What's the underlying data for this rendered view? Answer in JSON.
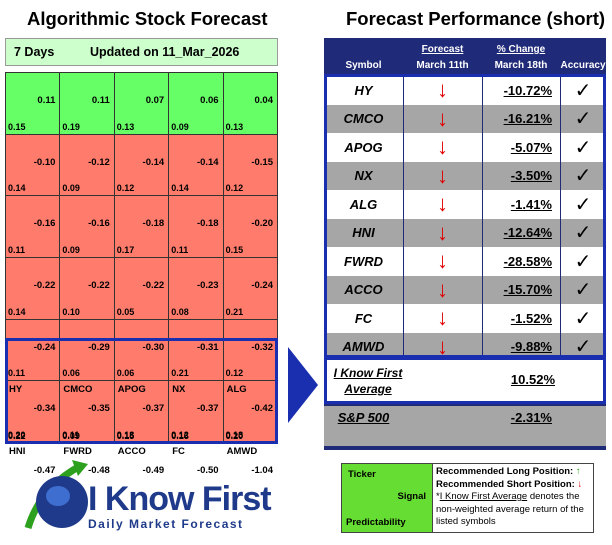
{
  "left_title": "Algorithmic Stock Forecast",
  "right_title": "Forecast Performance (short)",
  "grid_header": {
    "days": "7 Days",
    "updated": "Updated on 11_Mar_2026"
  },
  "grid": [
    {
      "symbol": "",
      "signal": "0.11",
      "pred": "0.15",
      "tone": "pos"
    },
    {
      "symbol": "",
      "signal": "0.11",
      "pred": "0.19",
      "tone": "pos"
    },
    {
      "symbol": "",
      "signal": "0.07",
      "pred": "0.13",
      "tone": "pos"
    },
    {
      "symbol": "",
      "signal": "0.06",
      "pred": "0.09",
      "tone": "pos"
    },
    {
      "symbol": "",
      "signal": "0.04",
      "pred": "0.13",
      "tone": "pos"
    },
    {
      "symbol": "",
      "signal": "-0.10",
      "pred": "0.14",
      "tone": "neg"
    },
    {
      "symbol": "",
      "signal": "-0.12",
      "pred": "0.09",
      "tone": "neg"
    },
    {
      "symbol": "",
      "signal": "-0.14",
      "pred": "0.12",
      "tone": "neg"
    },
    {
      "symbol": "",
      "signal": "-0.14",
      "pred": "0.14",
      "tone": "neg"
    },
    {
      "symbol": "",
      "signal": "-0.15",
      "pred": "0.12",
      "tone": "neg"
    },
    {
      "symbol": "",
      "signal": "-0.16",
      "pred": "0.11",
      "tone": "neg"
    },
    {
      "symbol": "",
      "signal": "-0.16",
      "pred": "0.09",
      "tone": "neg"
    },
    {
      "symbol": "",
      "signal": "-0.18",
      "pred": "0.17",
      "tone": "neg"
    },
    {
      "symbol": "",
      "signal": "-0.18",
      "pred": "0.11",
      "tone": "neg"
    },
    {
      "symbol": "",
      "signal": "-0.20",
      "pred": "0.15",
      "tone": "neg"
    },
    {
      "symbol": "",
      "signal": "-0.22",
      "pred": "0.14",
      "tone": "neg"
    },
    {
      "symbol": "",
      "signal": "-0.22",
      "pred": "0.10",
      "tone": "neg"
    },
    {
      "symbol": "",
      "signal": "-0.22",
      "pred": "0.05",
      "tone": "neg"
    },
    {
      "symbol": "",
      "signal": "-0.23",
      "pred": "0.08",
      "tone": "neg"
    },
    {
      "symbol": "",
      "signal": "-0.24",
      "pred": "0.21",
      "tone": "neg"
    },
    {
      "symbol": "",
      "signal": "-0.24",
      "pred": "0.11",
      "tone": "neg"
    },
    {
      "symbol": "",
      "signal": "-0.29",
      "pred": "0.06",
      "tone": "neg"
    },
    {
      "symbol": "",
      "signal": "-0.30",
      "pred": "0.06",
      "tone": "neg"
    },
    {
      "symbol": "",
      "signal": "-0.31",
      "pred": "0.21",
      "tone": "neg"
    },
    {
      "symbol": "",
      "signal": "-0.32",
      "pred": "0.12",
      "tone": "neg"
    },
    {
      "symbol": "HY",
      "signal": "-0.34",
      "pred": "0.20",
      "tone": "neg"
    },
    {
      "symbol": "CMCO",
      "signal": "-0.35",
      "pred": "0.11",
      "tone": "neg"
    },
    {
      "symbol": "APOG",
      "signal": "-0.37",
      "pred": "0.13",
      "tone": "neg"
    },
    {
      "symbol": "NX",
      "signal": "-0.37",
      "pred": "0.12",
      "tone": "neg"
    },
    {
      "symbol": "ALG",
      "signal": "-0.42",
      "pred": "0.13",
      "tone": "neg"
    },
    {
      "symbol": "HNI",
      "signal": "-0.47",
      "pred": "0.22",
      "tone": "neg"
    },
    {
      "symbol": "FWRD",
      "signal": "-0.48",
      "pred": "0.09",
      "tone": "neg"
    },
    {
      "symbol": "ACCO",
      "signal": "-0.49",
      "pred": "0.15",
      "tone": "neg"
    },
    {
      "symbol": "FC",
      "signal": "-0.50",
      "pred": "0.16",
      "tone": "neg"
    },
    {
      "symbol": "AMWD",
      "signal": "-1.04",
      "pred": "0.20",
      "tone": "neg"
    }
  ],
  "perf_header": {
    "symbol": "Symbol",
    "forecast": "Forecast",
    "forecast_date": "March 11th",
    "change": "% Change",
    "change_date": "March 18th",
    "accuracy": "Accuracy"
  },
  "perf_rows": [
    {
      "symbol": "HY",
      "arrow": "↓",
      "change": "-10.72%",
      "check": "✓",
      "tone": "white"
    },
    {
      "symbol": "CMCO",
      "arrow": "↓",
      "change": "-16.21%",
      "check": "✓",
      "tone": "grey"
    },
    {
      "symbol": "APOG",
      "arrow": "↓",
      "change": "-5.07%",
      "check": "✓",
      "tone": "white"
    },
    {
      "symbol": "NX",
      "arrow": "↓",
      "change": "-3.50%",
      "check": "✓",
      "tone": "grey"
    },
    {
      "symbol": "ALG",
      "arrow": "↓",
      "change": "-1.41%",
      "check": "✓",
      "tone": "white"
    },
    {
      "symbol": "HNI",
      "arrow": "↓",
      "change": "-12.64%",
      "check": "✓",
      "tone": "grey"
    },
    {
      "symbol": "FWRD",
      "arrow": "↓",
      "change": "-28.58%",
      "check": "✓",
      "tone": "white"
    },
    {
      "symbol": "ACCO",
      "arrow": "↓",
      "change": "-15.70%",
      "check": "✓",
      "tone": "grey"
    },
    {
      "symbol": "FC",
      "arrow": "↓",
      "change": "-1.52%",
      "check": "✓",
      "tone": "white"
    },
    {
      "symbol": "AMWD",
      "arrow": "↓",
      "change": "-9.88%",
      "check": "✓",
      "tone": "grey"
    }
  ],
  "average": {
    "label": "I Know First Average",
    "value": "10.52%"
  },
  "sp500": {
    "label": "S&P 500",
    "value": "-2.31%"
  },
  "logo": {
    "name": "I Know First",
    "tagline": "Daily Market Forecast"
  },
  "legend": {
    "ticker": "Ticker",
    "signal": "Signal",
    "predictability": "Predictability",
    "long": "Recommended Long Position:",
    "long_arrow": "↑",
    "short": "Recommended Short Position:",
    "short_arrow": "↓",
    "note_star": "*",
    "note_link": "I Know First Average",
    "note_rest": " denotes the non-weighted average return of the listed symbols"
  },
  "colors": {
    "positive": "#66ff66",
    "negative": "#ff7b6b",
    "header_navy": "#1f2a78",
    "highlight": "#1a2fb0",
    "down_arrow": "#e00000"
  }
}
